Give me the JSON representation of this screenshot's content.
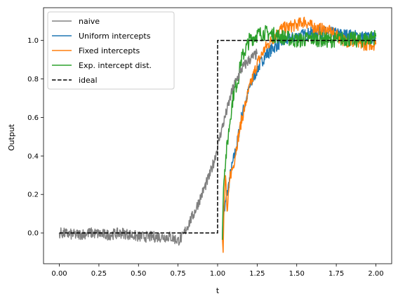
{
  "chart_data": {
    "type": "line",
    "title": "",
    "xlabel": "t",
    "ylabel": "Output",
    "xlim": [
      -0.1,
      2.1
    ],
    "ylim": [
      -0.16,
      1.17
    ],
    "xticks": [
      "0.00",
      "0.25",
      "0.50",
      "0.75",
      "1.00",
      "1.25",
      "1.50",
      "1.75",
      "2.00"
    ],
    "yticks": [
      "0.0",
      "0.2",
      "0.4",
      "0.6",
      "0.8",
      "1.0"
    ],
    "grid": false,
    "legend_position": "top-left",
    "series": [
      {
        "name": "naive",
        "color": "#808080",
        "style": "solid",
        "noise": 0.018,
        "x": [
          0,
          0.1,
          0.2,
          0.3,
          0.4,
          0.5,
          0.6,
          0.7,
          0.75,
          0.78,
          0.8,
          0.85,
          0.9,
          0.95,
          0.98,
          1.0,
          1.02,
          1.04,
          1.06,
          1.08,
          1.1,
          1.15,
          1.2,
          1.25
        ],
        "y": [
          0.0,
          -0.01,
          0.0,
          -0.01,
          0.0,
          -0.02,
          -0.02,
          -0.02,
          -0.04,
          -0.02,
          0.02,
          0.1,
          0.2,
          0.3,
          0.38,
          0.45,
          0.52,
          0.58,
          0.64,
          0.7,
          0.76,
          0.85,
          0.9,
          0.93
        ]
      },
      {
        "name": "Uniform intercepts",
        "color": "#1f77b4",
        "style": "solid",
        "noise": 0.02,
        "x": [
          1.03,
          1.04,
          1.06,
          1.08,
          1.1,
          1.12,
          1.15,
          1.2,
          1.25,
          1.3,
          1.35,
          1.4,
          1.5,
          1.6,
          1.7,
          1.8,
          1.9,
          2.0
        ],
        "y": [
          0.0,
          0.1,
          0.2,
          0.3,
          0.38,
          0.45,
          0.6,
          0.75,
          0.85,
          0.92,
          0.96,
          0.99,
          1.02,
          1.04,
          1.04,
          1.03,
          1.02,
          1.01
        ]
      },
      {
        "name": "Fixed intercepts",
        "color": "#ff7f0e",
        "style": "solid",
        "noise": 0.02,
        "x": [
          1.03,
          1.035,
          1.04,
          1.05,
          1.06,
          1.08,
          1.1,
          1.12,
          1.15,
          1.2,
          1.25,
          1.3,
          1.4,
          1.5,
          1.55,
          1.6,
          1.7,
          1.8,
          1.9,
          2.0
        ],
        "y": [
          0.0,
          -0.1,
          0.15,
          0.3,
          0.1,
          0.3,
          0.35,
          0.45,
          0.58,
          0.75,
          0.88,
          0.96,
          1.06,
          1.08,
          1.1,
          1.07,
          1.05,
          1.0,
          0.98,
          0.98
        ]
      },
      {
        "name": "Exp. intercept dist.",
        "color": "#2ca02c",
        "style": "solid",
        "noise": 0.025,
        "x": [
          1.03,
          1.04,
          1.06,
          1.08,
          1.1,
          1.13,
          1.15,
          1.2,
          1.25,
          1.3,
          1.4,
          1.5,
          1.6,
          1.7,
          1.8,
          1.9,
          2.0
        ],
        "y": [
          0.0,
          0.3,
          0.45,
          0.6,
          0.72,
          0.8,
          0.9,
          1.0,
          1.03,
          1.04,
          1.02,
          1.0,
          1.01,
          1.0,
          1.01,
          1.0,
          1.02
        ]
      },
      {
        "name": "ideal",
        "color": "#000000",
        "style": "dashed",
        "noise": 0,
        "x": [
          0,
          1.0,
          1.0,
          2.0
        ],
        "y": [
          0,
          0,
          1.0,
          1.0
        ]
      }
    ]
  }
}
